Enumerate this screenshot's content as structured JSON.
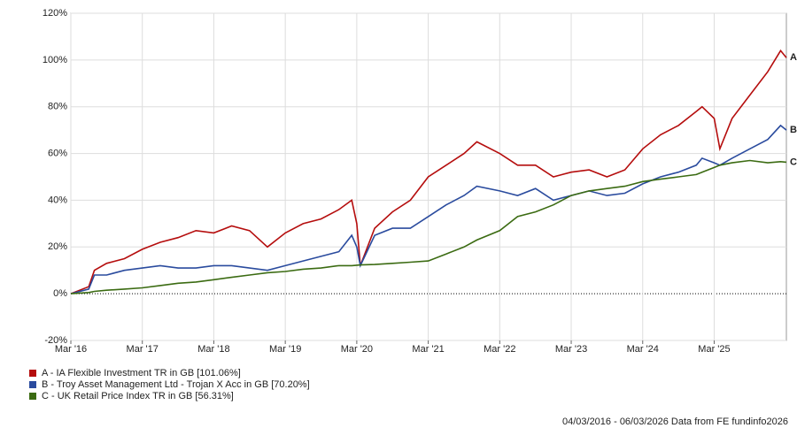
{
  "chart_data": {
    "type": "line",
    "x": [
      2016.17,
      2016.42,
      2016.5,
      2016.67,
      2016.92,
      2017.17,
      2017.42,
      2017.67,
      2017.92,
      2018.17,
      2018.42,
      2018.67,
      2018.92,
      2019.17,
      2019.42,
      2019.67,
      2019.92,
      2020.1,
      2020.17,
      2020.22,
      2020.42,
      2020.67,
      2020.92,
      2021.17,
      2021.42,
      2021.67,
      2021.85,
      2022.17,
      2022.42,
      2022.67,
      2022.92,
      2023.17,
      2023.42,
      2023.67,
      2023.92,
      2024.17,
      2024.42,
      2024.67,
      2024.92,
      2025.0,
      2025.17,
      2025.25,
      2025.42,
      2025.67,
      2025.92,
      2026.1,
      2026.18
    ],
    "series": [
      {
        "name": "A - IA Flexible Investment TR in GB [101.06%]",
        "end_label": "A",
        "color": "#b50d0d",
        "values": [
          0,
          3,
          10,
          13,
          15,
          19,
          22,
          24,
          27,
          26,
          29,
          27,
          20,
          26,
          30,
          32,
          36,
          40,
          30,
          12,
          28,
          35,
          40,
          50,
          55,
          60,
          65,
          60,
          55,
          55,
          50,
          52,
          53,
          50,
          53,
          62,
          68,
          72,
          78,
          80,
          75,
          62,
          75,
          85,
          95,
          104,
          101
        ]
      },
      {
        "name": "B - Troy Asset Management Ltd - Trojan X Acc in GB [70.20%]",
        "end_label": "B",
        "color": "#2a4b9e",
        "values": [
          0,
          2,
          8,
          8,
          10,
          11,
          12,
          11,
          11,
          12,
          12,
          11,
          10,
          12,
          14,
          16,
          18,
          25,
          20,
          12,
          25,
          28,
          28,
          33,
          38,
          42,
          46,
          44,
          42,
          45,
          40,
          42,
          44,
          42,
          43,
          47,
          50,
          52,
          55,
          58,
          56,
          55,
          58,
          62,
          66,
          72,
          70
        ]
      },
      {
        "name": "C - UK Retail Price Index TR in GB [56.31%]",
        "end_label": "C",
        "color": "#3b6b12",
        "values": [
          0,
          0.5,
          1,
          1.5,
          2,
          2.5,
          3.5,
          4.5,
          5,
          6,
          7,
          8,
          9,
          9.5,
          10.5,
          11,
          12,
          12,
          12.2,
          12.3,
          12.5,
          13,
          13.5,
          14,
          17,
          20,
          23,
          27,
          33,
          35,
          38,
          42,
          44,
          45,
          46,
          48,
          49,
          50,
          51,
          52,
          54,
          55,
          56,
          57,
          56,
          56.5,
          56.3
        ]
      }
    ],
    "xlim": [
      2016.17,
      2026.18
    ],
    "xticks": [
      {
        "value": 2016.17,
        "label": "Mar '16"
      },
      {
        "value": 2017.17,
        "label": "Mar '17"
      },
      {
        "value": 2018.17,
        "label": "Mar '18"
      },
      {
        "value": 2019.17,
        "label": "Mar '19"
      },
      {
        "value": 2020.17,
        "label": "Mar '20"
      },
      {
        "value": 2021.17,
        "label": "Mar '21"
      },
      {
        "value": 2022.17,
        "label": "Mar '22"
      },
      {
        "value": 2023.17,
        "label": "Mar '23"
      },
      {
        "value": 2024.17,
        "label": "Mar '24"
      },
      {
        "value": 2025.17,
        "label": "Mar '25"
      }
    ],
    "ylim": [
      -20,
      120
    ],
    "yticks": [
      {
        "value": -20,
        "label": "-20%"
      },
      {
        "value": 0,
        "label": "0%"
      },
      {
        "value": 20,
        "label": "20%"
      },
      {
        "value": 40,
        "label": "40%"
      },
      {
        "value": 60,
        "label": "60%"
      },
      {
        "value": 80,
        "label": "80%"
      },
      {
        "value": 100,
        "label": "100%"
      },
      {
        "value": 120,
        "label": "120%"
      }
    ],
    "grid": true,
    "footer": "04/03/2016 - 06/03/2026 Data from FE fundinfo2026"
  }
}
